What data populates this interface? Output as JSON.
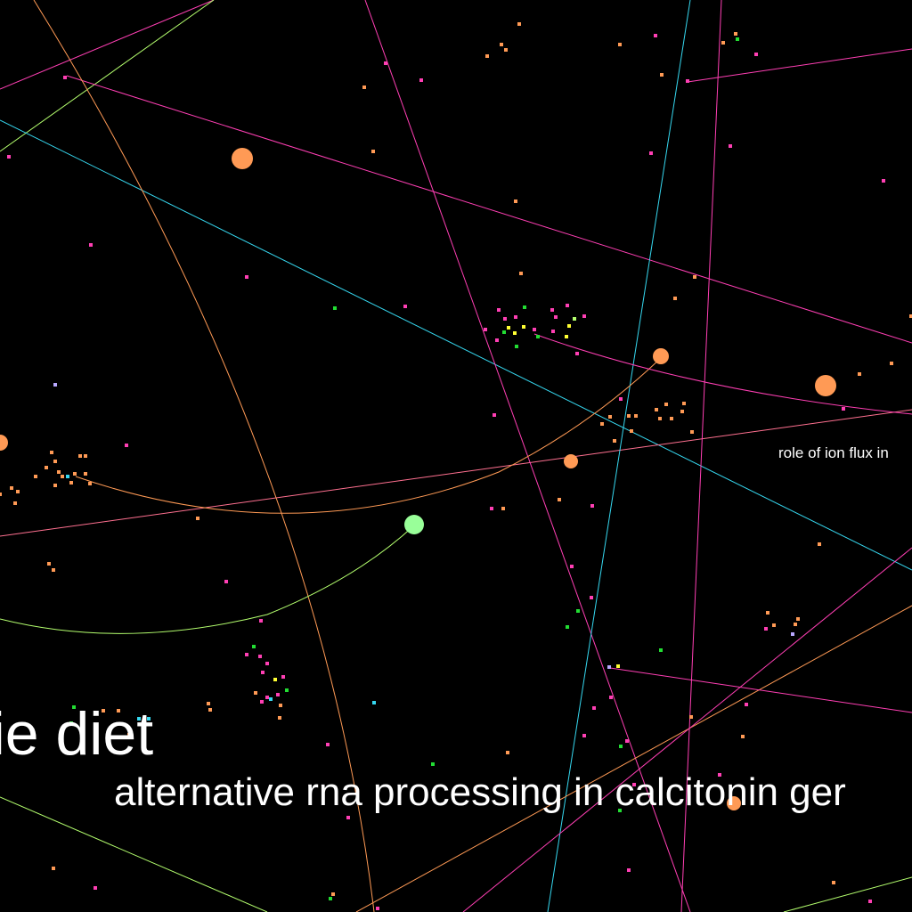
{
  "labels": {
    "big": "rie diet",
    "medium": "alternative rna processing in calcitonin ger",
    "small": "role of ion flux in"
  },
  "colors": {
    "background": "#000000",
    "text": "#ffffff",
    "magenta": "#ff3fb4",
    "orange": "#ff9a55",
    "cyan": "#36d8f0",
    "lime": "#b4ff6e",
    "green": "#22dd33",
    "yellow": "#ffff33",
    "lavender": "#b8a8ff",
    "mint": "#99ff99",
    "coral": "#ff7090"
  }
}
